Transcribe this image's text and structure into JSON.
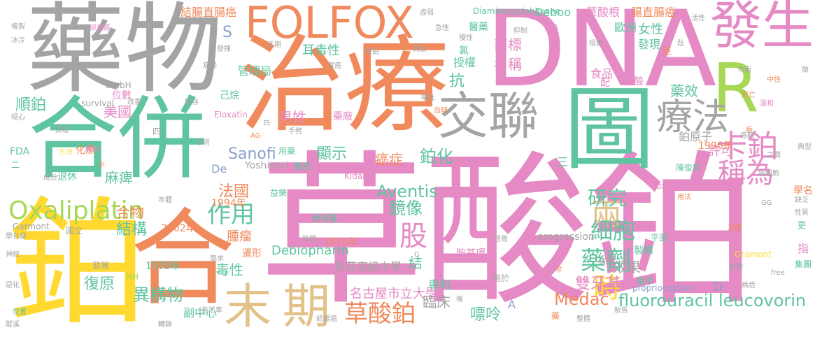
{
  "cloud": {
    "palette": {
      "gray": "#a4a4a4",
      "orange": "#f08a5d",
      "teal": "#5fc4a0",
      "pink": "#e58ac4",
      "yellow": "#ffd92f",
      "green": "#a6d854",
      "tan": "#e2c288",
      "blue": "#8da0cb"
    },
    "words": [
      {
        "text": "草酸鉑",
        "color": "pink"
      },
      {
        "text": "治療",
        "color": "orange"
      },
      {
        "text": "DNA",
        "color": "pink"
      },
      {
        "text": "藥物",
        "color": "gray"
      },
      {
        "text": "合併",
        "color": "teal"
      },
      {
        "text": "鉑",
        "color": "yellow"
      },
      {
        "text": "合",
        "color": "orange"
      },
      {
        "text": "FOLFOX",
        "color": "orange"
      },
      {
        "text": "發生",
        "color": "pink"
      },
      {
        "text": "R",
        "color": "green"
      },
      {
        "text": "交聯",
        "color": "gray"
      },
      {
        "text": "圖",
        "color": "teal"
      },
      {
        "text": "療法",
        "color": "gray"
      },
      {
        "text": "末",
        "color": "tan"
      },
      {
        "text": "期",
        "color": "tan"
      },
      {
        "text": "Oxaliplatin",
        "color": "green"
      },
      {
        "text": "草酸鉑",
        "color": "orange"
      },
      {
        "text": "fluorouracil leucovorin",
        "color": "teal"
      },
      {
        "text": "卡鉑",
        "color": "pink"
      },
      {
        "text": "稱為",
        "color": "pink"
      },
      {
        "text": "兩",
        "color": "tan"
      },
      {
        "text": "研究",
        "color": "teal"
      },
      {
        "text": "細胞",
        "color": "teal"
      },
      {
        "text": "藥劑",
        "color": "teal"
      },
      {
        "text": "作用",
        "color": "teal"
      },
      {
        "text": "股",
        "color": "pink"
      },
      {
        "text": "Aventis",
        "color": "teal"
      },
      {
        "text": "Sanofi",
        "color": "blue"
      },
      {
        "text": "鏡像",
        "color": "teal"
      },
      {
        "text": "時",
        "color": "yellow"
      },
      {
        "text": "法國",
        "color": "orange"
      },
      {
        "text": "雙牙基",
        "color": "pink"
      },
      {
        "text": "名古屋市立大學",
        "color": "pink"
      },
      {
        "text": "新莊高級中學",
        "color": "gray"
      },
      {
        "text": "Medac",
        "color": "orange"
      },
      {
        "text": "結構",
        "color": "teal"
      },
      {
        "text": "合物",
        "color": "orange"
      },
      {
        "text": "Debiopharm",
        "color": "teal"
      },
      {
        "text": "異構物",
        "color": "teal"
      },
      {
        "text": "復原",
        "color": "teal"
      },
      {
        "text": "臨床",
        "color": "gray"
      },
      {
        "text": "嘌呤",
        "color": "teal"
      },
      {
        "text": "抗",
        "color": "teal"
      },
      {
        "text": "藥效",
        "color": "teal"
      },
      {
        "text": "鉑化",
        "color": "teal"
      },
      {
        "text": "癌症",
        "color": "orange"
      },
      {
        "text": "顯示",
        "color": "teal"
      },
      {
        "text": "男姓",
        "color": "pink"
      },
      {
        "text": "鉑原子",
        "color": "gray"
      },
      {
        "text": "效果",
        "color": "gray"
      },
      {
        "text": "毒性",
        "color": "teal"
      },
      {
        "text": "腫瘤",
        "color": "orange"
      },
      {
        "text": "麻痺",
        "color": "teal"
      },
      {
        "text": "美國",
        "color": "pink"
      },
      {
        "text": "順鉑",
        "color": "teal"
      },
      {
        "text": "許可",
        "color": "pink"
      },
      {
        "text": "女性",
        "color": "teal"
      },
      {
        "text": "名稱",
        "color": "pink"
      },
      {
        "text": "商標",
        "color": "pink"
      },
      {
        "text": "歐洲",
        "color": "teal"
      },
      {
        "text": "發現",
        "color": "teal"
      },
      {
        "text": "食品",
        "color": "pink"
      },
      {
        "text": "結腸直腸癌",
        "color": "orange"
      },
      {
        "text": "Deboo",
        "color": "teal"
      },
      {
        "text": "草酸根",
        "color": "pink"
      },
      {
        "text": "腸直腸癌",
        "color": "orange"
      },
      {
        "text": "S",
        "color": "blue"
      },
      {
        "text": "耳毒性",
        "color": "teal"
      },
      {
        "text": "管理局",
        "color": "teal"
      },
      {
        "text": "醫藥",
        "color": "teal"
      },
      {
        "text": "授權",
        "color": "teal"
      },
      {
        "text": "副中心",
        "color": "teal"
      },
      {
        "text": "藥廠",
        "color": "pink"
      },
      {
        "text": "Kidani",
        "color": "pink"
      },
      {
        "text": "Yoshinori",
        "color": "gray"
      },
      {
        "text": "專利",
        "color": "teal"
      },
      {
        "text": "1979年",
        "color": "teal"
      },
      {
        "text": "1976年",
        "color": "orange"
      },
      {
        "text": "2002年",
        "color": "orange"
      },
      {
        "text": "1994年",
        "color": "orange"
      },
      {
        "text": "1996年",
        "color": "orange"
      },
      {
        "text": "Diaminocyclohexane",
        "color": "teal"
      },
      {
        "text": "oxalatoplatinum",
        "color": "pink"
      },
      {
        "text": "progression",
        "color": "gray"
      },
      {
        "text": "proprioception",
        "color": "blue"
      },
      {
        "text": "Eloxatin",
        "color": "pink"
      },
      {
        "text": "Garmont",
        "color": "gray"
      },
      {
        "text": "Gramont",
        "color": "yellow"
      },
      {
        "text": "survival",
        "color": "gray"
      },
      {
        "text": "GmbH",
        "color": "gray"
      },
      {
        "text": "FDA",
        "color": "teal"
      },
      {
        "text": "NH",
        "color": "green"
      },
      {
        "text": "De",
        "color": "blue"
      },
      {
        "text": "D",
        "color": "blue"
      },
      {
        "text": "A",
        "color": "blue"
      },
      {
        "text": "最早",
        "color": "teal"
      },
      {
        "text": "指",
        "color": "pink"
      },
      {
        "text": "集團",
        "color": "teal"
      },
      {
        "text": "製備",
        "color": "teal"
      },
      {
        "text": "教師",
        "color": "gray"
      },
      {
        "text": "位數",
        "color": "pink"
      },
      {
        "text": "己烷",
        "color": "teal"
      },
      {
        "text": "化療",
        "color": "orange"
      },
      {
        "text": "退休",
        "color": "teal"
      },
      {
        "text": "發展",
        "color": "gray"
      },
      {
        "text": "國立",
        "color": "gray"
      },
      {
        "text": "使用權",
        "color": "teal"
      },
      {
        "text": "單牙基",
        "color": "pink"
      },
      {
        "text": "胺基環",
        "color": "pink"
      },
      {
        "text": "用於",
        "color": "gray"
      },
      {
        "text": "益樂",
        "color": "teal"
      },
      {
        "text": "教授",
        "color": "teal"
      },
      {
        "text": "用藥",
        "color": "teal"
      },
      {
        "text": "譯為",
        "color": "pink"
      },
      {
        "text": "三",
        "color": "teal"
      },
      {
        "text": "更",
        "color": "teal"
      },
      {
        "text": "學名",
        "color": "orange"
      },
      {
        "text": "平面",
        "color": "teal"
      },
      {
        "text": "陳俊民",
        "color": "teal"
      },
      {
        "text": "酸",
        "color": "pink"
      },
      {
        "text": "配",
        "color": "pink"
      },
      {
        "text": "遷形",
        "color": "orange"
      },
      {
        "text": "結",
        "color": "teal"
      },
      {
        "text": "草",
        "color": "orange"
      },
      {
        "text": "氯",
        "color": "teal"
      },
      {
        "text": "Pt",
        "color": "orange"
      },
      {
        "text": "病症",
        "color": "gray"
      },
      {
        "text": "位置",
        "color": "teal"
      },
      {
        "text": "存活率",
        "color": "gray"
      },
      {
        "text": "轉錄",
        "color": "gray"
      },
      {
        "text": "結腸癌",
        "color": "gray"
      },
      {
        "text": "成份",
        "color": "gray"
      },
      {
        "text": "方法",
        "color": "yellow"
      },
      {
        "text": "機制",
        "color": "pink"
      },
      {
        "text": "手術",
        "color": "gray"
      },
      {
        "text": "長短",
        "color": "gray"
      },
      {
        "text": "變存",
        "color": "gray"
      },
      {
        "text": "改善",
        "color": "gray"
      },
      {
        "text": "病變",
        "color": "gray"
      },
      {
        "text": "發揮",
        "color": "gray"
      },
      {
        "text": "活期",
        "color": "gray"
      },
      {
        "text": "經由",
        "color": "gray"
      },
      {
        "text": "胃癌",
        "color": "gray"
      },
      {
        "text": "異股",
        "color": "gray"
      },
      {
        "text": "慢性",
        "color": "gray"
      },
      {
        "text": "急性",
        "color": "gray"
      },
      {
        "text": "虛弱",
        "color": "gray"
      },
      {
        "text": "抑制",
        "color": "gray"
      },
      {
        "text": "提高",
        "color": "pink"
      },
      {
        "text": "投藥",
        "color": "gray"
      },
      {
        "text": "活性",
        "color": "gray"
      },
      {
        "text": "合成",
        "color": "gray"
      },
      {
        "text": "市面",
        "color": "gray"
      },
      {
        "text": "做",
        "color": "gray"
      },
      {
        "text": "中性",
        "color": "orange"
      },
      {
        "text": "死亡",
        "color": "orange"
      },
      {
        "text": "溫和",
        "color": "pink"
      },
      {
        "text": "癌細胞",
        "color": "gray"
      },
      {
        "text": "典型",
        "color": "gray"
      },
      {
        "text": "之間",
        "color": "gray"
      },
      {
        "text": "缺乏",
        "color": "gray"
      },
      {
        "text": "性質",
        "color": "gray"
      },
      {
        "text": "活體",
        "color": "orange"
      },
      {
        "text": "實驗",
        "color": "gray"
      },
      {
        "text": "為異",
        "color": "gray"
      },
      {
        "text": "販售",
        "color": "gray"
      },
      {
        "text": "整體",
        "color": "gray"
      },
      {
        "text": "指數",
        "color": "gray"
      },
      {
        "text": "學名藥",
        "color": "gray"
      },
      {
        "text": "神經",
        "color": "gray"
      },
      {
        "text": "惡化",
        "color": "gray"
      },
      {
        "text": "蹤溪",
        "color": "gray"
      },
      {
        "text": "卵巢癌",
        "color": "pink"
      },
      {
        "text": "複製",
        "color": "gray"
      },
      {
        "text": "冰冷",
        "color": "gray"
      },
      {
        "text": "噁心",
        "color": "gray"
      },
      {
        "text": "嘔吐",
        "color": "gray"
      },
      {
        "text": "血球",
        "color": "orange"
      },
      {
        "text": "本體",
        "color": "gray"
      },
      {
        "text": "白",
        "color": "gray"
      },
      {
        "text": "AG",
        "color": "orange"
      },
      {
        "text": "示",
        "color": "orange"
      },
      {
        "text": "二",
        "color": "teal"
      },
      {
        "text": "四",
        "color": "gray"
      },
      {
        "text": "GG",
        "color": "gray"
      },
      {
        "text": "free",
        "color": "gray"
      },
      {
        "text": "G",
        "color": "gray"
      },
      {
        "text": "非",
        "color": "orange"
      },
      {
        "text": "感覺",
        "color": "gray"
      },
      {
        "text": "時間",
        "color": "gray"
      },
      {
        "text": "腳趾",
        "color": "gray"
      },
      {
        "text": "趾",
        "color": "gray"
      },
      {
        "text": "癌靶",
        "color": "gray"
      },
      {
        "text": "用法",
        "color": "orange"
      },
      {
        "text": "病",
        "color": "orange"
      },
      {
        "text": "強",
        "color": "gray"
      },
      {
        "text": "藥",
        "color": "orange"
      },
      {
        "text": "毫求",
        "color": "gray"
      },
      {
        "text": "手臂",
        "color": "gray"
      }
    ]
  }
}
